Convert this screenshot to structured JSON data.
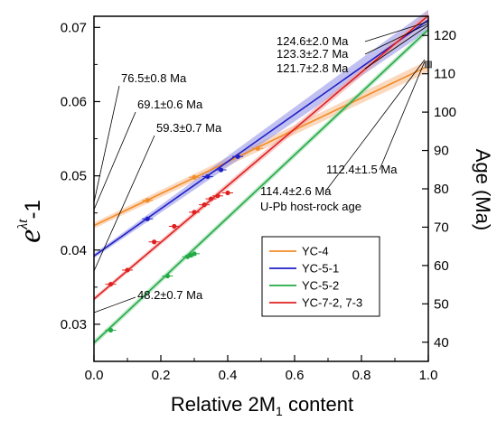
{
  "chart_data": {
    "type": "line",
    "xlabel": "Relative 2M",
    "xlabel_sub": "1",
    "xlabel_tail": " content",
    "ylabel_left": "e",
    "ylabel_left_sup": "λt",
    "ylabel_left_tail": "-1",
    "ylabel_right": "Age (Ma)",
    "xlim": [
      0,
      1
    ],
    "ylim_left": [
      0.025,
      0.0715
    ],
    "ylim_right": [
      35,
      125
    ],
    "x_ticks": [
      "0.0",
      "0.2",
      "0.4",
      "0.6",
      "0.8",
      "1.0"
    ],
    "x_tick_values": [
      0,
      0.2,
      0.4,
      0.6,
      0.8,
      1.0
    ],
    "y_left_ticks": [
      "0.03",
      "0.04",
      "0.05",
      "0.06",
      "0.07"
    ],
    "y_left_tick_values": [
      0.03,
      0.04,
      0.05,
      0.06,
      0.07
    ],
    "y_right_ticks": [
      "40",
      "50",
      "60",
      "70",
      "80",
      "90",
      "100",
      "110",
      "120"
    ],
    "y_right_tick_values": [
      40,
      50,
      60,
      70,
      80,
      90,
      100,
      110,
      120
    ],
    "series": [
      {
        "name": "YC-4",
        "color": "#f28c28",
        "band_color": "#f7b98a",
        "line": [
          [
            0,
            0.0433
          ],
          [
            1,
            0.0648
          ]
        ],
        "band_halfwidth": [
          0.0004,
          0.0008
        ],
        "points": [
          [
            0.16,
            0.0467
          ],
          [
            0.3,
            0.0498
          ],
          [
            0.49,
            0.0537
          ]
        ]
      },
      {
        "name": "YC-5-1",
        "color": "#1f1fc8",
        "band_color": "#8e8ee6",
        "line": [
          [
            0,
            0.0392
          ],
          [
            1,
            0.071
          ]
        ],
        "band_halfwidth": [
          0.0003,
          0.0014
        ],
        "points": [
          [
            0.16,
            0.0442
          ],
          [
            0.34,
            0.0499
          ],
          [
            0.38,
            0.0508
          ],
          [
            0.43,
            0.0526
          ]
        ]
      },
      {
        "name": "YC-5-2",
        "color": "#22aa44",
        "band_color": "#8fd6a4",
        "line": [
          [
            0,
            0.0275
          ],
          [
            1,
            0.0697
          ]
        ],
        "band_halfwidth": [
          0.0004,
          0.0004
        ],
        "points": [
          [
            0.05,
            0.0292
          ],
          [
            0.22,
            0.0365
          ],
          [
            0.28,
            0.0391
          ],
          [
            0.29,
            0.0393
          ],
          [
            0.3,
            0.0395
          ]
        ]
      },
      {
        "name": "YC-7-2, 7-3",
        "color": "#e0201f",
        "band_color": "#f0a0a0",
        "line": [
          [
            0,
            0.0334
          ],
          [
            1,
            0.0716
          ]
        ],
        "band_halfwidth": [
          0.0003,
          0.0006
        ],
        "points": [
          [
            0.05,
            0.0354
          ],
          [
            0.1,
            0.0373
          ],
          [
            0.18,
            0.0411
          ],
          [
            0.24,
            0.0432
          ],
          [
            0.3,
            0.0451
          ],
          [
            0.33,
            0.0461
          ],
          [
            0.35,
            0.0469
          ],
          [
            0.37,
            0.0473
          ],
          [
            0.4,
            0.0477
          ]
        ]
      }
    ],
    "host_rock_point": [
      1.0,
      0.065
    ],
    "annotations": {
      "a1": "76.5±0.8 Ma",
      "a2": "69.1±0.6 Ma",
      "a3": "59.3±0.7 Ma",
      "a4": "48.2±0.7 Ma",
      "a5": "124.6±2.0 Ma",
      "a6": "123.3±2.7 Ma",
      "a7": "121.7±2.8 Ma",
      "a8": "112.4±1.5 Ma",
      "a9": "114.4±2.6 Ma",
      "a10": "U-Pb host-rock age"
    },
    "legend_position": "lower-right"
  }
}
